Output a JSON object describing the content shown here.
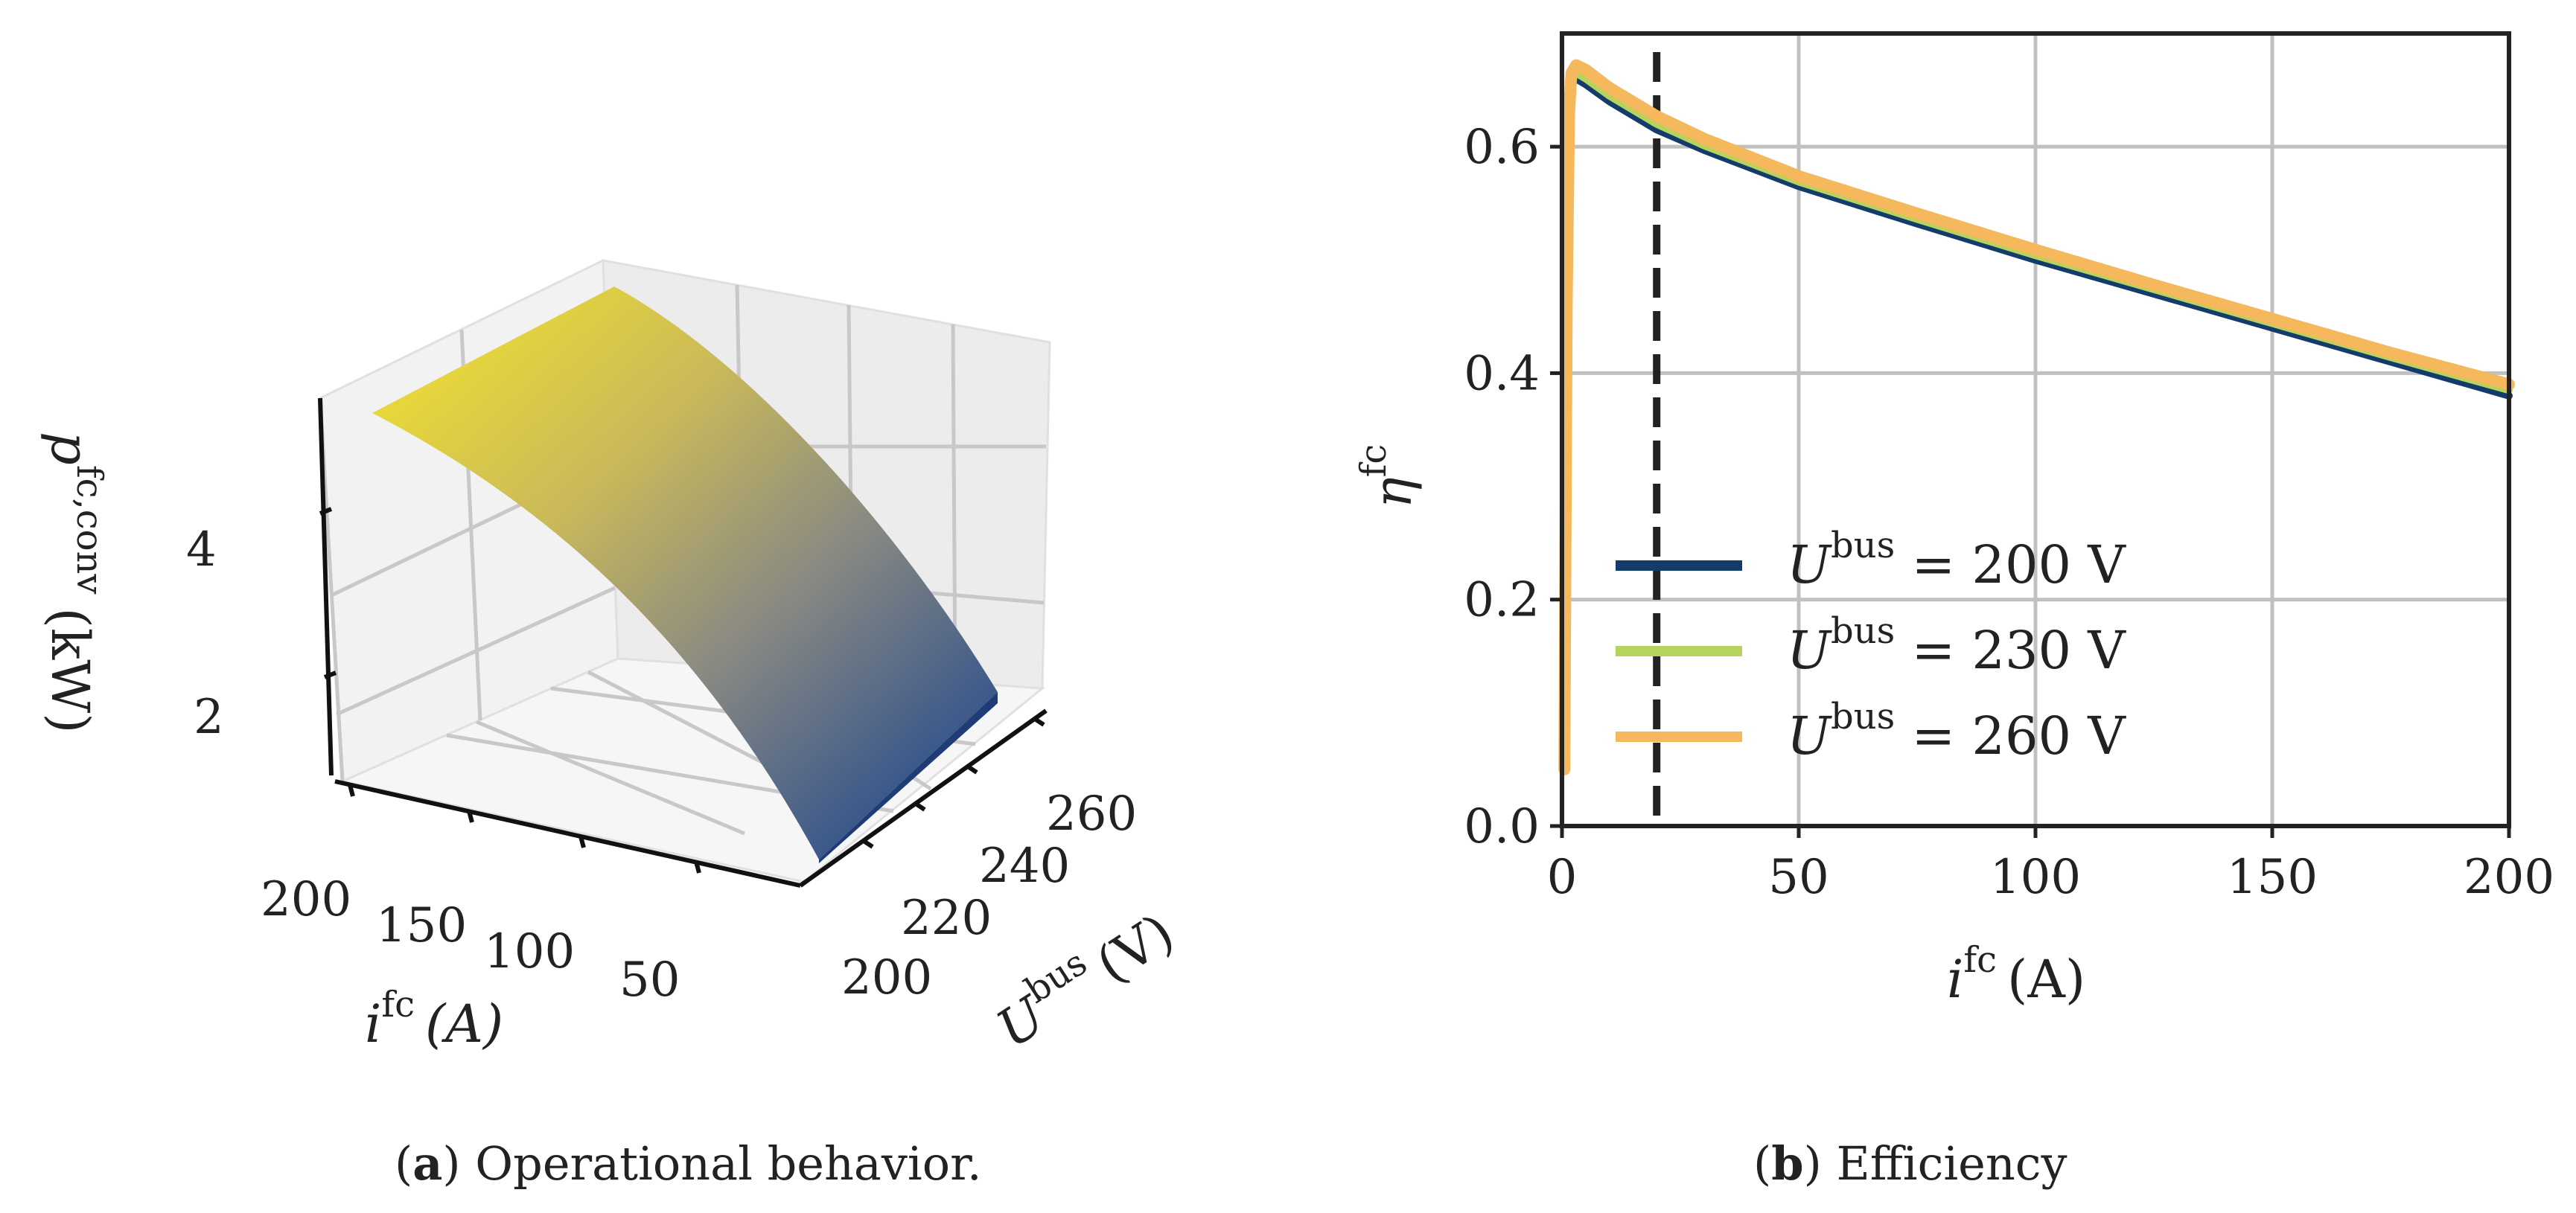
{
  "captions": {
    "left_label": "(a)",
    "left_letter": "a",
    "left_text": "Operational behavior.",
    "right_letter": "b",
    "right_text": "Efficiency"
  },
  "chart_data": [
    {
      "type": "surface",
      "panel": "a",
      "title": "",
      "xlabel_symbol": "i",
      "xlabel_sup": "fc",
      "xlabel_unit": "(A)",
      "ylabel_symbol": "U",
      "ylabel_sup": "bus",
      "ylabel_unit": "(V)",
      "zlabel_symbol": "p",
      "zlabel_sup": "fc,conv",
      "zlabel_unit": "(kW)",
      "x_ticks": [
        "200",
        "150",
        "100",
        "50"
      ],
      "y_ticks": [
        "200",
        "220",
        "240",
        "260"
      ],
      "z_ticks": [
        "2",
        "4"
      ],
      "colormap": [
        "#1b3b7a",
        "#3d5a8a",
        "#8a8a7f",
        "#c9b95a",
        "#f7e62a"
      ],
      "surface_description_values": {
        "current_range_A": [
          0,
          200
        ],
        "voltage_range_V": [
          200,
          260
        ],
        "power_range_kW": [
          0.5,
          5.5
        ]
      }
    },
    {
      "type": "line",
      "panel": "b",
      "title": "",
      "xlabel_symbol": "i",
      "xlabel_sup": "fc",
      "xlabel_unit": "(A)",
      "ylabel_symbol": "η",
      "ylabel_sup": "fc",
      "xlim": [
        0,
        200
      ],
      "ylim": [
        0,
        0.7
      ],
      "x_ticks": [
        0,
        50,
        100,
        150,
        200
      ],
      "y_ticks": [
        0.0,
        0.2,
        0.4,
        0.6
      ],
      "x_tick_labels": [
        "0",
        "50",
        "100",
        "150",
        "200"
      ],
      "y_tick_labels": [
        "0.0",
        "0.2",
        "0.4",
        "0.6"
      ],
      "vline_x": 20,
      "legend_position": "lower-left",
      "series": [
        {
          "name": "200 V",
          "legend_symbol": "U",
          "legend_sup": "bus",
          "legend_rest": " = 200 V",
          "color": "#143c6b",
          "x": [
            0.5,
            1,
            1.5,
            2,
            3,
            5,
            10,
            20,
            30,
            50,
            75,
            100,
            125,
            150,
            175,
            200
          ],
          "y": [
            0.05,
            0.45,
            0.62,
            0.655,
            0.66,
            0.655,
            0.64,
            0.615,
            0.597,
            0.565,
            0.532,
            0.5,
            0.47,
            0.44,
            0.41,
            0.38
          ]
        },
        {
          "name": "230 V",
          "legend_symbol": "U",
          "legend_sup": "bus",
          "legend_rest": " = 230 V",
          "color": "#b5d35d",
          "x": [
            0.5,
            1,
            1.5,
            2,
            3,
            5,
            10,
            20,
            30,
            50,
            75,
            100,
            125,
            150,
            175,
            200
          ],
          "y": [
            0.05,
            0.45,
            0.625,
            0.66,
            0.665,
            0.66,
            0.645,
            0.62,
            0.601,
            0.569,
            0.536,
            0.504,
            0.474,
            0.444,
            0.414,
            0.385
          ]
        },
        {
          "name": "260 V",
          "legend_symbol": "U",
          "legend_sup": "bus",
          "legend_rest": " = 260 V",
          "color": "#f5b85c",
          "x": [
            0.5,
            1,
            1.5,
            2,
            3,
            5,
            10,
            20,
            30,
            50,
            75,
            100,
            125,
            150,
            175,
            200
          ],
          "y": [
            0.05,
            0.46,
            0.63,
            0.665,
            0.672,
            0.668,
            0.652,
            0.627,
            0.607,
            0.574,
            0.541,
            0.509,
            0.478,
            0.448,
            0.418,
            0.39
          ]
        }
      ]
    }
  ]
}
